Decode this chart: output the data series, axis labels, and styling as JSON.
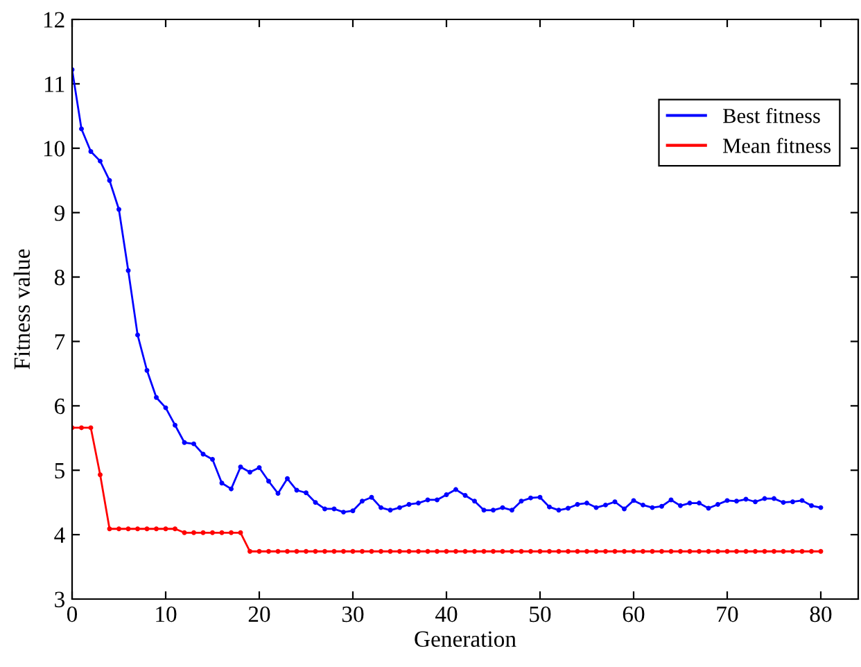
{
  "chart_data": {
    "type": "line",
    "xlabel": "Generation",
    "ylabel": "Fitness value",
    "x": [
      0,
      1,
      2,
      3,
      4,
      5,
      6,
      7,
      8,
      9,
      10,
      11,
      12,
      13,
      14,
      15,
      16,
      17,
      18,
      19,
      20,
      21,
      22,
      23,
      24,
      25,
      26,
      27,
      28,
      29,
      30,
      31,
      32,
      33,
      34,
      35,
      36,
      37,
      38,
      39,
      40,
      41,
      42,
      43,
      44,
      45,
      46,
      47,
      48,
      49,
      50,
      51,
      52,
      53,
      54,
      55,
      56,
      57,
      58,
      59,
      60,
      61,
      62,
      63,
      64,
      65,
      66,
      67,
      68,
      69,
      70,
      71,
      72,
      73,
      74,
      75,
      76,
      77,
      78,
      79,
      80
    ],
    "series": [
      {
        "name": "Best fitness",
        "color": "#0000ff",
        "values": [
          11.22,
          10.3,
          9.95,
          9.8,
          9.5,
          9.05,
          8.1,
          7.1,
          6.55,
          6.13,
          5.97,
          5.7,
          5.43,
          5.41,
          5.25,
          5.17,
          4.8,
          4.71,
          5.05,
          4.97,
          5.04,
          4.83,
          4.64,
          4.87,
          4.69,
          4.65,
          4.5,
          4.4,
          4.4,
          4.35,
          4.37,
          4.52,
          4.58,
          4.42,
          4.38,
          4.42,
          4.47,
          4.49,
          4.54,
          4.54,
          4.62,
          4.7,
          4.61,
          4.52,
          4.38,
          4.38,
          4.42,
          4.38,
          4.52,
          4.57,
          4.58,
          4.43,
          4.38,
          4.41,
          4.47,
          4.49,
          4.42,
          4.46,
          4.51,
          4.4,
          4.53,
          4.46,
          4.42,
          4.44,
          4.54,
          4.45,
          4.49,
          4.49,
          4.41,
          4.47,
          4.53,
          4.52,
          4.55,
          4.51,
          4.56,
          4.56,
          4.5,
          4.51,
          4.53,
          4.45,
          4.42
        ]
      },
      {
        "name": "Mean fitness",
        "color": "#ff0000",
        "values": [
          5.66,
          5.66,
          5.66,
          4.93,
          4.09,
          4.09,
          4.09,
          4.09,
          4.09,
          4.09,
          4.09,
          4.09,
          4.03,
          4.03,
          4.03,
          4.03,
          4.03,
          4.03,
          4.03,
          3.74,
          3.74,
          3.74,
          3.74,
          3.74,
          3.74,
          3.74,
          3.74,
          3.74,
          3.74,
          3.74,
          3.74,
          3.74,
          3.74,
          3.74,
          3.74,
          3.74,
          3.74,
          3.74,
          3.74,
          3.74,
          3.74,
          3.74,
          3.74,
          3.74,
          3.74,
          3.74,
          3.74,
          3.74,
          3.74,
          3.74,
          3.74,
          3.74,
          3.74,
          3.74,
          3.74,
          3.74,
          3.74,
          3.74,
          3.74,
          3.74,
          3.74,
          3.74,
          3.74,
          3.74,
          3.74,
          3.74,
          3.74,
          3.74,
          3.74,
          3.74,
          3.74,
          3.74,
          3.74,
          3.74,
          3.74,
          3.74,
          3.74,
          3.74,
          3.74,
          3.74,
          3.74
        ]
      }
    ],
    "xlim": [
      0,
      84
    ],
    "xticks": [
      0,
      10,
      20,
      30,
      40,
      50,
      60,
      70,
      80
    ],
    "ylim": [
      3,
      12
    ],
    "yticks": [
      3,
      4,
      5,
      6,
      7,
      8,
      9,
      10,
      11,
      12
    ],
    "grid": false,
    "legend": "top right",
    "marker": "circle",
    "line_style": "solid"
  }
}
